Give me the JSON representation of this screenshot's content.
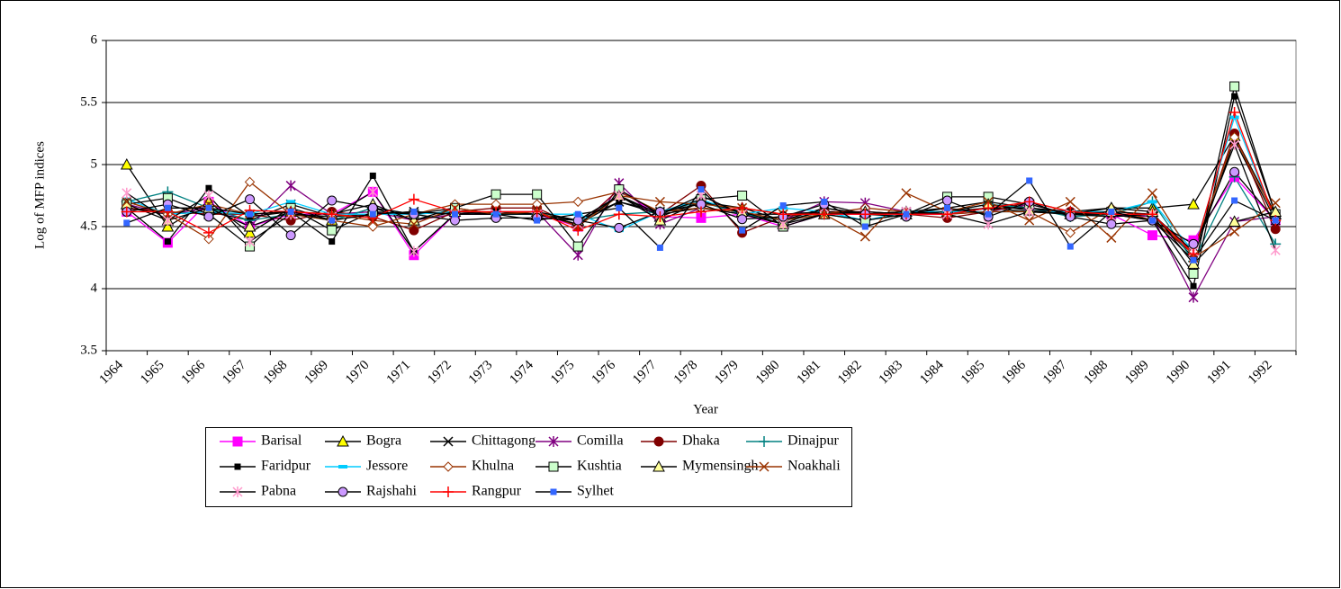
{
  "chart_data": {
    "type": "line",
    "x_label": "Year",
    "y_label": "Log of MFP indices",
    "categories": [
      "1964",
      "1965",
      "1966",
      "1967",
      "1968",
      "1969",
      "1970",
      "1971",
      "1972",
      "1973",
      "1974",
      "1975",
      "1976",
      "1977",
      "1978",
      "1979",
      "1980",
      "1981",
      "1982",
      "1983",
      "1984",
      "1985",
      "1986",
      "1987",
      "1988",
      "1989",
      "1990",
      "1991",
      "1992"
    ],
    "ylim": [
      3.5,
      6
    ],
    "yticks": [
      3.5,
      4,
      4.5,
      5,
      5.5,
      6
    ],
    "grid": true,
    "legend": "bottom",
    "series": [
      {
        "name": "Barisal",
        "color": "#ff00ff",
        "line_color": "#ff00ff",
        "marker": "square",
        "values": [
          4.62,
          4.37,
          4.7,
          4.5,
          4.6,
          4.6,
          4.78,
          4.27,
          4.6,
          4.6,
          4.6,
          4.5,
          4.8,
          4.58,
          4.57,
          4.6,
          4.5,
          4.6,
          4.6,
          4.6,
          4.6,
          4.65,
          4.65,
          4.6,
          4.6,
          4.43,
          4.39,
          4.9,
          4.55
        ]
      },
      {
        "name": "Bogra",
        "color": "#ffff00",
        "line_color": "#000000",
        "marker": "triangle",
        "values": [
          5.0,
          4.5,
          4.7,
          4.45,
          4.65,
          4.55,
          4.65,
          4.55,
          4.65,
          4.6,
          4.6,
          4.55,
          4.75,
          4.58,
          4.7,
          4.65,
          4.55,
          4.65,
          4.6,
          4.62,
          4.65,
          4.7,
          4.65,
          4.62,
          4.65,
          4.65,
          4.68,
          5.23,
          4.6
        ]
      },
      {
        "name": "Chittagong",
        "color": "#000000",
        "line_color": "#000000",
        "marker": "x",
        "values": [
          4.65,
          4.6,
          4.62,
          4.55,
          4.68,
          4.58,
          4.6,
          4.62,
          4.6,
          4.62,
          4.6,
          4.52,
          4.7,
          4.62,
          4.65,
          4.62,
          4.55,
          4.62,
          4.6,
          4.62,
          4.62,
          4.65,
          4.62,
          4.6,
          4.58,
          4.6,
          4.25,
          5.2,
          4.55
        ]
      },
      {
        "name": "Comilla",
        "color": "#800080",
        "line_color": "#800080",
        "marker": "star",
        "values": [
          4.68,
          4.6,
          4.65,
          4.5,
          4.83,
          4.6,
          4.62,
          4.55,
          4.6,
          4.62,
          4.62,
          4.27,
          4.85,
          4.52,
          4.65,
          4.6,
          4.55,
          4.7,
          4.69,
          4.62,
          4.6,
          4.62,
          4.68,
          4.6,
          4.6,
          4.58,
          3.93,
          4.54,
          4.58
        ]
      },
      {
        "name": "Dhaka",
        "color": "#800000",
        "line_color": "#800000",
        "marker": "circle",
        "values": [
          4.65,
          4.62,
          4.6,
          4.6,
          4.55,
          4.62,
          4.58,
          4.47,
          4.62,
          4.65,
          4.65,
          4.5,
          4.8,
          4.6,
          4.83,
          4.45,
          4.58,
          4.62,
          4.62,
          4.6,
          4.57,
          4.62,
          4.7,
          4.62,
          4.6,
          4.55,
          4.28,
          5.25,
          4.48
        ]
      },
      {
        "name": "Dinajpur",
        "color": "#008080",
        "line_color": "#008080",
        "marker": "plus",
        "values": [
          4.7,
          4.78,
          4.65,
          4.55,
          4.6,
          4.55,
          4.65,
          4.6,
          4.62,
          4.6,
          4.6,
          4.55,
          4.6,
          4.62,
          4.7,
          4.6,
          4.55,
          4.6,
          4.55,
          4.6,
          4.62,
          4.68,
          4.65,
          4.58,
          4.6,
          4.7,
          4.22,
          4.9,
          4.36
        ]
      },
      {
        "name": "Faridpur",
        "color": "#000000",
        "line_color": "#000000",
        "marker": "small-square",
        "values": [
          4.65,
          4.38,
          4.81,
          4.58,
          4.62,
          4.38,
          4.91,
          4.3,
          4.6,
          4.62,
          4.6,
          4.55,
          4.7,
          4.6,
          4.65,
          4.6,
          4.6,
          4.62,
          4.6,
          4.62,
          4.6,
          4.65,
          4.65,
          4.6,
          4.6,
          4.55,
          4.02,
          5.55,
          4.6
        ]
      },
      {
        "name": "Jessore",
        "color": "#00ccff",
        "line_color": "#00ccff",
        "marker": "dash",
        "values": [
          4.72,
          4.6,
          4.62,
          4.6,
          4.7,
          4.6,
          4.6,
          4.6,
          4.62,
          4.6,
          4.6,
          4.6,
          4.47,
          4.62,
          4.72,
          4.6,
          4.65,
          4.62,
          4.55,
          4.62,
          4.62,
          4.62,
          4.62,
          4.62,
          4.62,
          4.7,
          4.3,
          5.38,
          4.55
        ]
      },
      {
        "name": "Khulna",
        "color": "#ffffff",
        "line_color": "#993300",
        "marker": "diamond",
        "values": [
          4.7,
          4.6,
          4.4,
          4.86,
          4.6,
          4.55,
          4.5,
          4.6,
          4.68,
          4.68,
          4.68,
          4.7,
          4.78,
          4.62,
          4.65,
          4.62,
          4.55,
          4.6,
          4.65,
          4.62,
          4.6,
          4.62,
          4.62,
          4.45,
          4.65,
          4.55,
          4.3,
          5.22,
          4.58
        ]
      },
      {
        "name": "Kushtia",
        "color": "#ccffcc",
        "line_color": "#000000",
        "marker": "square",
        "values": [
          4.68,
          4.73,
          4.6,
          4.34,
          4.65,
          4.47,
          4.62,
          4.6,
          4.65,
          4.76,
          4.76,
          4.34,
          4.8,
          4.6,
          4.72,
          4.75,
          4.5,
          4.6,
          4.55,
          4.6,
          4.74,
          4.74,
          4.68,
          4.6,
          4.62,
          4.6,
          4.12,
          5.63,
          4.6
        ]
      },
      {
        "name": "Mymensingh",
        "color": "#ffff99",
        "line_color": "#000000",
        "marker": "triangle",
        "values": [
          4.68,
          4.55,
          4.65,
          4.5,
          4.62,
          4.6,
          4.68,
          4.55,
          4.62,
          4.6,
          4.62,
          4.55,
          4.75,
          4.55,
          4.7,
          4.62,
          4.52,
          4.6,
          4.62,
          4.6,
          4.62,
          4.68,
          4.63,
          4.6,
          4.65,
          4.62,
          4.2,
          4.54,
          4.62
        ]
      },
      {
        "name": "Noakhali",
        "color": "#993300",
        "line_color": "#993300",
        "marker": "x",
        "values": [
          4.7,
          4.6,
          4.68,
          4.6,
          4.62,
          4.6,
          4.55,
          4.52,
          4.65,
          4.6,
          4.62,
          4.5,
          4.75,
          4.7,
          4.68,
          4.65,
          4.6,
          4.6,
          4.42,
          4.77,
          4.62,
          4.7,
          4.55,
          4.7,
          4.41,
          4.77,
          4.25,
          4.46,
          4.69
        ]
      },
      {
        "name": "Pabna",
        "color": "#ff99cc",
        "line_color": "#000000",
        "marker": "star",
        "values": [
          4.77,
          4.55,
          4.75,
          4.38,
          4.6,
          4.58,
          4.78,
          4.3,
          4.6,
          4.6,
          4.6,
          4.52,
          4.75,
          4.6,
          4.75,
          4.6,
          4.52,
          4.65,
          4.6,
          4.62,
          4.6,
          4.52,
          4.62,
          4.6,
          4.58,
          4.6,
          4.3,
          5.16,
          4.31
        ]
      },
      {
        "name": "Rajshahi",
        "color": "#cc99ff",
        "line_color": "#000000",
        "marker": "circle",
        "values": [
          4.62,
          4.68,
          4.58,
          4.72,
          4.43,
          4.71,
          4.65,
          4.6,
          4.55,
          4.57,
          4.57,
          4.55,
          4.49,
          4.62,
          4.68,
          4.56,
          4.58,
          4.68,
          4.6,
          4.58,
          4.71,
          4.58,
          4.7,
          4.58,
          4.52,
          4.55,
          4.36,
          4.94,
          4.55
        ]
      },
      {
        "name": "Rangpur",
        "color": "#ff0000",
        "line_color": "#ff0000",
        "marker": "plus",
        "values": [
          4.62,
          4.62,
          4.45,
          4.63,
          4.62,
          4.6,
          4.57,
          4.72,
          4.62,
          4.62,
          4.62,
          4.47,
          4.6,
          4.58,
          4.62,
          4.65,
          4.6,
          4.6,
          4.6,
          4.6,
          4.6,
          4.65,
          4.7,
          4.62,
          4.6,
          4.6,
          4.28,
          5.42,
          4.55
        ]
      },
      {
        "name": "Sylhet",
        "color": "#3366ff",
        "line_color": "#000000",
        "marker": "small-square",
        "values": [
          4.53,
          4.65,
          4.65,
          4.6,
          4.62,
          4.55,
          4.6,
          4.62,
          4.6,
          4.6,
          4.55,
          4.6,
          4.65,
          4.33,
          4.8,
          4.47,
          4.67,
          4.7,
          4.5,
          4.6,
          4.65,
          4.6,
          4.87,
          4.34,
          4.62,
          4.55,
          4.23,
          4.71,
          4.55
        ]
      }
    ]
  }
}
